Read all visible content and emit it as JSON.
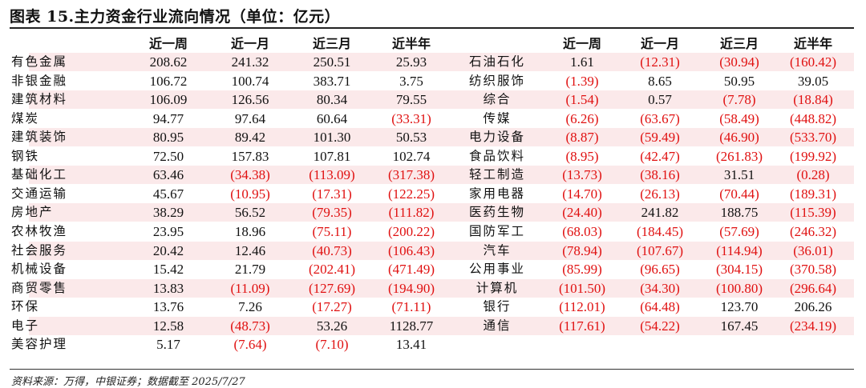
{
  "title": "图表 15.主力资金行业流向情况（单位：亿元）",
  "columns": [
    "近一周",
    "近一月",
    "近三月",
    "近半年"
  ],
  "colors": {
    "negative": "#e01010",
    "stripe": "#fbe9ea",
    "text": "#111111"
  },
  "left_rows": [
    {
      "industry": "有色金属",
      "week": "208.62",
      "month": "241.32",
      "three_month": "250.51",
      "half_year": "25.93"
    },
    {
      "industry": "非银金融",
      "week": "106.72",
      "month": "100.74",
      "three_month": "383.71",
      "half_year": "3.75"
    },
    {
      "industry": "建筑材料",
      "week": "106.09",
      "month": "126.56",
      "three_month": "80.34",
      "half_year": "79.55"
    },
    {
      "industry": "煤炭",
      "week": "94.77",
      "month": "97.64",
      "three_month": "60.64",
      "half_year": "(33.31)"
    },
    {
      "industry": "建筑装饰",
      "week": "80.95",
      "month": "89.42",
      "three_month": "101.30",
      "half_year": "50.53"
    },
    {
      "industry": "钢铁",
      "week": "72.50",
      "month": "157.83",
      "three_month": "107.81",
      "half_year": "102.74"
    },
    {
      "industry": "基础化工",
      "week": "63.46",
      "month": "(34.38)",
      "three_month": "(113.09)",
      "half_year": "(317.38)"
    },
    {
      "industry": "交通运输",
      "week": "45.67",
      "month": "(10.95)",
      "three_month": "(17.31)",
      "half_year": "(122.25)"
    },
    {
      "industry": "房地产",
      "week": "38.29",
      "month": "56.52",
      "three_month": "(79.35)",
      "half_year": "(111.82)"
    },
    {
      "industry": "农林牧渔",
      "week": "23.95",
      "month": "18.96",
      "three_month": "(75.11)",
      "half_year": "(200.22)"
    },
    {
      "industry": "社会服务",
      "week": "20.42",
      "month": "12.46",
      "three_month": "(40.73)",
      "half_year": "(106.43)"
    },
    {
      "industry": "机械设备",
      "week": "15.42",
      "month": "21.79",
      "three_month": "(202.41)",
      "half_year": "(471.49)"
    },
    {
      "industry": "商贸零售",
      "week": "13.83",
      "month": "(11.09)",
      "three_month": "(127.69)",
      "half_year": "(194.90)"
    },
    {
      "industry": "环保",
      "week": "13.76",
      "month": "7.26",
      "three_month": "(17.27)",
      "half_year": "(71.11)"
    },
    {
      "industry": "电子",
      "week": "12.58",
      "month": "(48.73)",
      "three_month": "53.26",
      "half_year": "1128.77"
    },
    {
      "industry": "美容护理",
      "week": "5.17",
      "month": "(7.64)",
      "three_month": "(7.10)",
      "half_year": "13.41"
    }
  ],
  "right_rows": [
    {
      "industry": "石油石化",
      "week": "1.61",
      "month": "(12.31)",
      "three_month": "(30.94)",
      "half_year": "(160.42)"
    },
    {
      "industry": "纺织服饰",
      "week": "(1.39)",
      "month": "8.65",
      "three_month": "50.95",
      "half_year": "39.05"
    },
    {
      "industry": "综合",
      "week": "(1.54)",
      "month": "0.57",
      "three_month": "(7.78)",
      "half_year": "(18.84)"
    },
    {
      "industry": "传媒",
      "week": "(6.26)",
      "month": "(63.67)",
      "three_month": "(58.49)",
      "half_year": "(448.82)"
    },
    {
      "industry": "电力设备",
      "week": "(8.87)",
      "month": "(59.49)",
      "three_month": "(46.90)",
      "half_year": "(533.70)"
    },
    {
      "industry": "食品饮料",
      "week": "(8.95)",
      "month": "(42.47)",
      "three_month": "(261.83)",
      "half_year": "(199.92)"
    },
    {
      "industry": "轻工制造",
      "week": "(13.73)",
      "month": "(38.16)",
      "three_month": "31.51",
      "half_year": "(0.28)"
    },
    {
      "industry": "家用电器",
      "week": "(14.70)",
      "month": "(26.13)",
      "three_month": "(70.44)",
      "half_year": "(189.31)"
    },
    {
      "industry": "医药生物",
      "week": "(24.40)",
      "month": "241.82",
      "three_month": "188.75",
      "half_year": "(115.39)"
    },
    {
      "industry": "国防军工",
      "week": "(68.03)",
      "month": "(184.45)",
      "three_month": "(57.69)",
      "half_year": "(246.32)"
    },
    {
      "industry": "汽车",
      "week": "(78.94)",
      "month": "(107.67)",
      "three_month": "(114.94)",
      "half_year": "(36.01)"
    },
    {
      "industry": "公用事业",
      "week": "(85.99)",
      "month": "(96.65)",
      "three_month": "(304.15)",
      "half_year": "(370.58)"
    },
    {
      "industry": "计算机",
      "week": "(101.50)",
      "month": "(34.30)",
      "three_month": "(100.80)",
      "half_year": "(296.64)"
    },
    {
      "industry": "银行",
      "week": "(112.01)",
      "month": "(64.48)",
      "three_month": "123.70",
      "half_year": "206.26"
    },
    {
      "industry": "通信",
      "week": "(117.61)",
      "month": "(54.22)",
      "three_month": "167.45",
      "half_year": "(234.19)"
    }
  ],
  "footnote": "资料来源：万得，中银证券；数据截至 2025/7/27"
}
